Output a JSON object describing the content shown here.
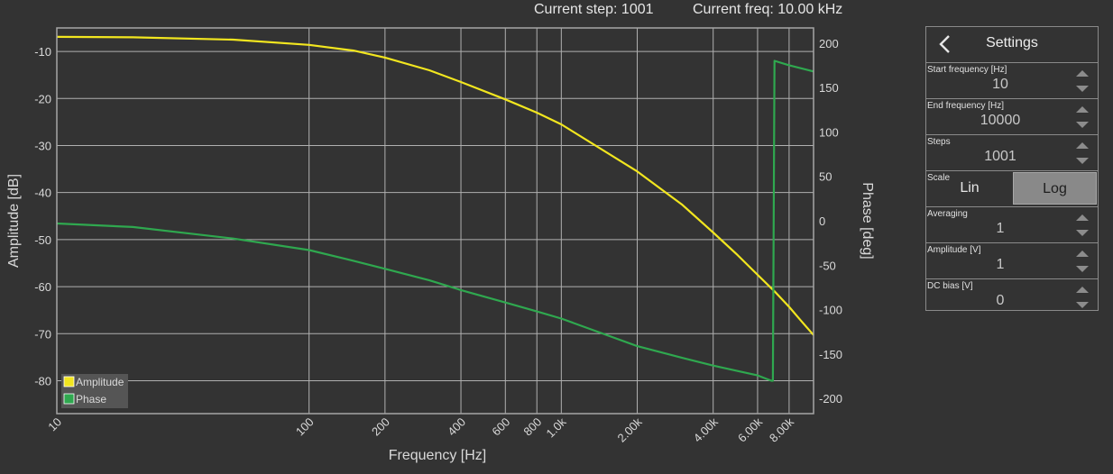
{
  "status": {
    "current_step_label": "Current step: 1001",
    "current_freq_label": "Current freq: 10.00 kHz"
  },
  "plot": {
    "ylabel_left": "Amplitude [dB]",
    "ylabel_right": "Phase [deg]",
    "xlabel": "Frequency [Hz]",
    "left_ticks": [
      "-10",
      "-20",
      "-30",
      "-40",
      "-50",
      "-60",
      "-70",
      "-80"
    ],
    "right_ticks": [
      "200",
      "150",
      "100",
      "50",
      "0",
      "-50",
      "-100",
      "-150",
      "-200"
    ],
    "x_ticks": [
      "10",
      "100",
      "200",
      "400",
      "600",
      "800",
      "1.0k",
      "2.00k",
      "4.00k",
      "6.00k",
      "8.00k"
    ]
  },
  "legend": {
    "items": [
      {
        "label": "Amplitude",
        "color": "#f2e61f"
      },
      {
        "label": "Phase",
        "color": "#2fa84f"
      }
    ]
  },
  "chart_data": {
    "type": "line",
    "xlabel": "Frequency [Hz]",
    "ylabel": "Amplitude [dB]",
    "y2label": "Phase [deg]",
    "xscale": "log",
    "xlim": [
      10,
      10000
    ],
    "ylim": [
      -87,
      -5
    ],
    "y2lim": [
      -217,
      217
    ],
    "grid": true,
    "legend_position": "bottom-left",
    "series": [
      {
        "name": "Amplitude",
        "axis": "left",
        "color": "#f2e61f",
        "x": [
          10,
          20,
          50,
          100,
          150,
          200,
          300,
          400,
          600,
          800,
          1000,
          2000,
          3000,
          4000,
          5000,
          6000,
          7000,
          8000,
          9000,
          10000
        ],
        "y": [
          -6.9,
          -7.0,
          -7.5,
          -8.6,
          -9.8,
          -11.3,
          -14.0,
          -16.5,
          -20.2,
          -23.0,
          -25.5,
          -35.5,
          -42.5,
          -48.5,
          -53.3,
          -57.5,
          -61.0,
          -64.3,
          -67.5,
          -70.3
        ]
      },
      {
        "name": "Phase",
        "axis": "right",
        "color": "#2fa84f",
        "x": [
          10,
          20,
          50,
          100,
          150,
          200,
          300,
          400,
          600,
          800,
          1000,
          2000,
          3000,
          4000,
          5000,
          6000,
          6800,
          6900,
          7000,
          8000,
          10000
        ],
        "y": [
          -3,
          -7,
          -20,
          -33,
          -45,
          -54,
          -67,
          -78,
          -92,
          -102,
          -110,
          -141,
          -154,
          -163,
          -169,
          -174,
          -180,
          -180,
          180,
          175,
          168
        ]
      }
    ]
  },
  "settings": {
    "title": "Settings",
    "start_freq": {
      "label": "Start frequency [Hz]",
      "value": "10"
    },
    "end_freq": {
      "label": "End frequency [Hz]",
      "value": "10000"
    },
    "steps": {
      "label": "Steps",
      "value": "1001"
    },
    "scale": {
      "label": "Scale",
      "options": [
        "Lin",
        "Log"
      ],
      "selected": "Log"
    },
    "averaging": {
      "label": "Averaging",
      "value": "1"
    },
    "amplitude": {
      "label": "Amplitude [V]",
      "value": "1"
    },
    "dc_bias": {
      "label": "DC bias [V]",
      "value": "0"
    }
  }
}
